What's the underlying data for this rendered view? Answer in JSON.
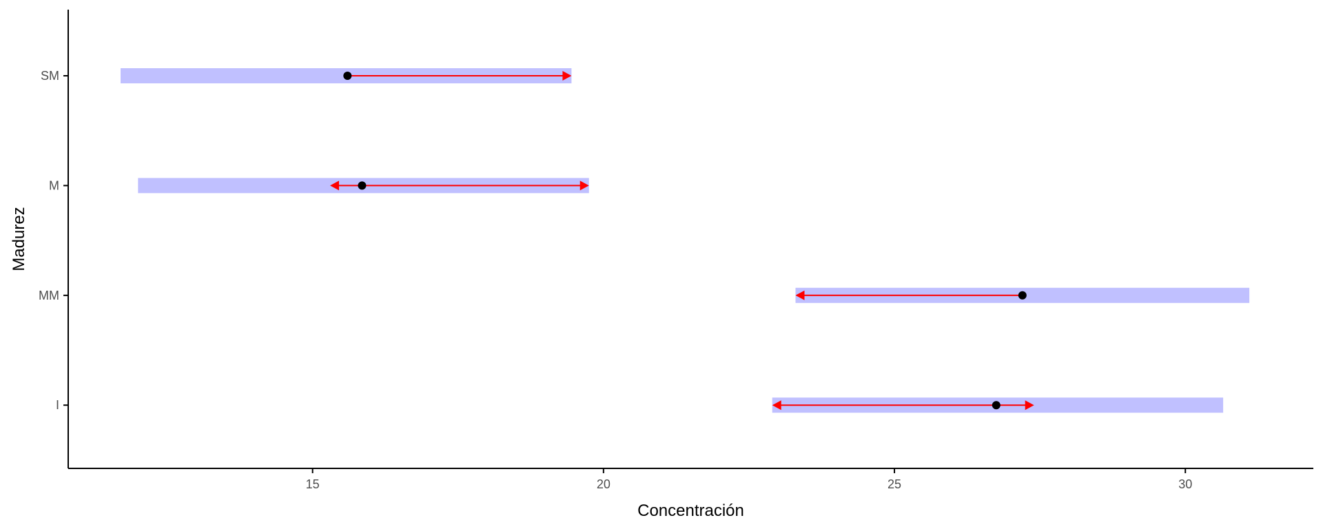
{
  "chart_data": {
    "type": "interval-arrow",
    "xlabel": "Concentración",
    "ylabel": "Madurez",
    "xlim": [
      10.8,
      32.2
    ],
    "x_ticks": [
      "15",
      "20",
      "25",
      "30"
    ],
    "x_tick_values": [
      15,
      20,
      25,
      30
    ],
    "categories": [
      "SM",
      "M",
      "MM",
      "I"
    ],
    "rows": [
      {
        "label": "SM",
        "band": [
          11.7,
          19.45
        ],
        "point": 15.6,
        "arrow": [
          15.6,
          19.45
        ],
        "arrow_left": false,
        "arrow_right": true
      },
      {
        "label": "M",
        "band": [
          12.0,
          19.75
        ],
        "point": 15.85,
        "arrow": [
          15.3,
          19.75
        ],
        "arrow_left": true,
        "arrow_right": true
      },
      {
        "label": "MM",
        "band": [
          23.3,
          31.1
        ],
        "point": 27.2,
        "arrow": [
          23.3,
          27.2
        ],
        "arrow_left": true,
        "arrow_right": false
      },
      {
        "label": "I",
        "band": [
          22.9,
          30.65
        ],
        "point": 26.75,
        "arrow": [
          22.9,
          27.4
        ],
        "arrow_left": true,
        "arrow_right": true
      }
    ],
    "grid": false,
    "legend": "none"
  },
  "colors": {
    "band": "#c0c0ff",
    "arrow": "#ff0000",
    "point": "#000000",
    "axis": "#000000"
  }
}
